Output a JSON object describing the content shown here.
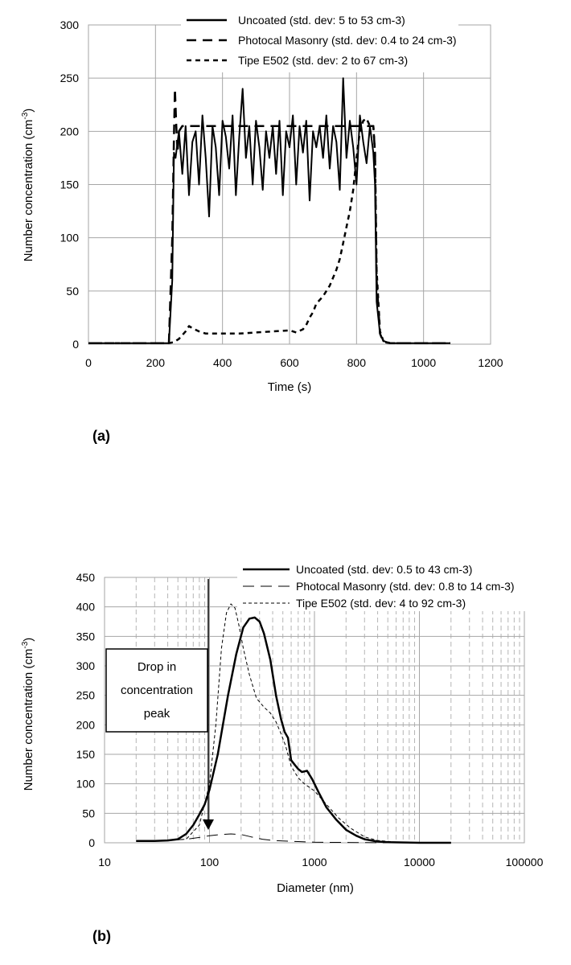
{
  "chart_data": [
    {
      "panel": "(a)",
      "type": "line",
      "xlabel": "Time (s)",
      "ylabel": "Number concentration (cm",
      "ylabel_sup": "-3",
      "ylabel_end": ")",
      "xlim": [
        0,
        1200
      ],
      "ylim": [
        0,
        300
      ],
      "xticks": [
        0,
        200,
        400,
        600,
        800,
        1000,
        1200
      ],
      "yticks": [
        0,
        50,
        100,
        150,
        200,
        250,
        300
      ],
      "grid": true,
      "legend_position": "top-right",
      "series": [
        {
          "name": "Uncoated (std. dev: 5 to 53 cm-3)",
          "style": "solid",
          "x": [
            0,
            240,
            250,
            255,
            260,
            270,
            280,
            290,
            300,
            310,
            320,
            330,
            340,
            350,
            360,
            370,
            380,
            390,
            400,
            410,
            420,
            430,
            440,
            450,
            460,
            470,
            480,
            490,
            500,
            510,
            520,
            530,
            540,
            550,
            560,
            570,
            580,
            590,
            600,
            610,
            620,
            630,
            640,
            650,
            660,
            670,
            680,
            690,
            700,
            710,
            720,
            730,
            740,
            750,
            760,
            770,
            780,
            790,
            800,
            810,
            820,
            830,
            840,
            850,
            855,
            860,
            870,
            880,
            900,
            1080
          ],
          "y": [
            1,
            1,
            60,
            180,
            175,
            200,
            160,
            205,
            140,
            190,
            200,
            150,
            215,
            175,
            120,
            205,
            185,
            140,
            210,
            195,
            165,
            215,
            140,
            195,
            240,
            175,
            205,
            150,
            210,
            185,
            145,
            200,
            175,
            205,
            160,
            210,
            140,
            200,
            185,
            215,
            150,
            205,
            180,
            210,
            135,
            200,
            185,
            205,
            175,
            215,
            165,
            205,
            190,
            145,
            250,
            175,
            210,
            185,
            150,
            215,
            190,
            170,
            205,
            180,
            150,
            40,
            10,
            3,
            1,
            1
          ]
        },
        {
          "name": "Photocal Masonry (std. dev: 0.4 to 24 cm-3)",
          "style": "dashed",
          "x": [
            0,
            240,
            250,
            255,
            258,
            262,
            266,
            270,
            280,
            300,
            350,
            400,
            450,
            500,
            550,
            600,
            650,
            700,
            750,
            800,
            840,
            850,
            855,
            860,
            870,
            880,
            900,
            1080
          ],
          "y": [
            1,
            1,
            100,
            195,
            240,
            205,
            180,
            200,
            205,
            205,
            205,
            205,
            205,
            205,
            205,
            205,
            205,
            205,
            205,
            205,
            205,
            205,
            180,
            60,
            10,
            2,
            1,
            1
          ]
        },
        {
          "name": "Tipe E502 (std. dev: 2 to 67 cm-3)",
          "style": "short-dashed",
          "x": [
            0,
            240,
            255,
            270,
            290,
            300,
            310,
            330,
            350,
            400,
            450,
            500,
            550,
            600,
            620,
            640,
            650,
            660,
            670,
            680,
            700,
            720,
            740,
            750,
            760,
            770,
            780,
            790,
            800,
            810,
            820,
            830,
            840,
            850,
            855,
            860,
            870,
            880,
            900,
            1080
          ],
          "y": [
            1,
            1,
            2,
            5,
            12,
            17,
            15,
            12,
            10,
            10,
            10,
            11,
            12,
            13,
            11,
            14,
            18,
            25,
            30,
            38,
            45,
            55,
            70,
            80,
            95,
            110,
            125,
            145,
            175,
            200,
            210,
            212,
            205,
            205,
            180,
            70,
            12,
            3,
            1,
            1
          ]
        }
      ]
    },
    {
      "panel": "(b)",
      "type": "line",
      "xscale": "log",
      "xlabel": "Diameter (nm)",
      "ylabel": "Number concentration (cm",
      "ylabel_sup": "-3",
      "ylabel_end": ")",
      "xlim": [
        10,
        100000
      ],
      "ylim": [
        0,
        450
      ],
      "xticks": [
        10,
        100,
        1000,
        10000,
        100000
      ],
      "xtick_labels": [
        "10",
        "100",
        "1000",
        "10000",
        "100000"
      ],
      "yticks": [
        0,
        50,
        100,
        150,
        200,
        250,
        300,
        350,
        400,
        450
      ],
      "grid": true,
      "minor_grid": true,
      "legend_position": "top-right",
      "annotation": {
        "lines": [
          "Drop in",
          "concentration",
          "peak"
        ],
        "arrow_to_x": 95,
        "arrow_to_y": 20
      },
      "series": [
        {
          "name": "Uncoated (std. dev: 0.5 to 43 cm-3)",
          "style": "solid",
          "x": [
            20,
            30,
            40,
            50,
            60,
            70,
            80,
            90,
            100,
            120,
            150,
            180,
            210,
            240,
            270,
            300,
            330,
            380,
            430,
            480,
            520,
            560,
            600,
            650,
            700,
            760,
            850,
            950,
            1100,
            1300,
            1600,
            2000,
            2500,
            3000,
            4000,
            5000,
            7000,
            10000,
            20000
          ],
          "y": [
            3,
            3,
            4,
            6,
            15,
            30,
            48,
            65,
            90,
            150,
            250,
            320,
            365,
            380,
            382,
            375,
            355,
            310,
            250,
            210,
            188,
            178,
            140,
            132,
            125,
            120,
            122,
            108,
            85,
            60,
            40,
            22,
            12,
            6,
            2,
            1,
            0.5,
            0,
            0
          ]
        },
        {
          "name": "Photocal Masonry (std. dev: 0.8 to 14 cm-3)",
          "style": "long-dashed",
          "x": [
            20,
            40,
            60,
            80,
            100,
            130,
            160,
            200,
            250,
            320,
            400,
            500,
            700,
            1000,
            2000,
            5000,
            20000
          ],
          "y": [
            3,
            4,
            6,
            9,
            12,
            14,
            15,
            14,
            10,
            6,
            4,
            3,
            2,
            1,
            0.5,
            0,
            0
          ]
        },
        {
          "name": "Tipe E502 (std. dev: 4 to 92 cm-3)",
          "style": "short-dashed",
          "x": [
            20,
            40,
            60,
            80,
            100,
            115,
            130,
            145,
            160,
            175,
            190,
            210,
            240,
            280,
            330,
            380,
            430,
            480,
            530,
            600,
            700,
            800,
            1000,
            1300,
            1700,
            2200,
            3000,
            4000,
            6000,
            10000,
            20000
          ],
          "y": [
            3,
            4,
            6,
            30,
            100,
            200,
            330,
            390,
            405,
            398,
            370,
            330,
            285,
            245,
            230,
            220,
            205,
            185,
            165,
            130,
            110,
            100,
            88,
            65,
            42,
            25,
            10,
            4,
            1,
            0,
            0
          ]
        }
      ]
    }
  ]
}
